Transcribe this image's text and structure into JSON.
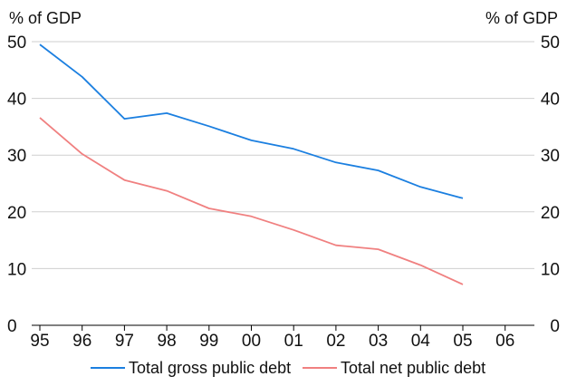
{
  "chart_data": {
    "type": "line",
    "left_axis_label": "% of GDP",
    "right_axis_label": "% of GDP",
    "categories": [
      "95",
      "96",
      "97",
      "98",
      "99",
      "00",
      "01",
      "02",
      "03",
      "04",
      "05",
      "06"
    ],
    "ylim": [
      0,
      50
    ],
    "yticks": [
      "0",
      "10",
      "20",
      "30",
      "40",
      "50"
    ],
    "grid": true,
    "legend_position": "bottom",
    "series": [
      {
        "name": "Total gross public debt",
        "color": "#1b7fe0",
        "values": [
          49.5,
          43.8,
          36.4,
          37.4,
          35.1,
          32.6,
          31.1,
          28.7,
          27.3,
          24.4,
          22.4,
          null
        ]
      },
      {
        "name": "Total net public debt",
        "color": "#f08080",
        "values": [
          36.6,
          30.2,
          25.6,
          23.7,
          20.6,
          19.2,
          16.8,
          14.1,
          13.4,
          10.6,
          7.2,
          null
        ]
      }
    ]
  }
}
